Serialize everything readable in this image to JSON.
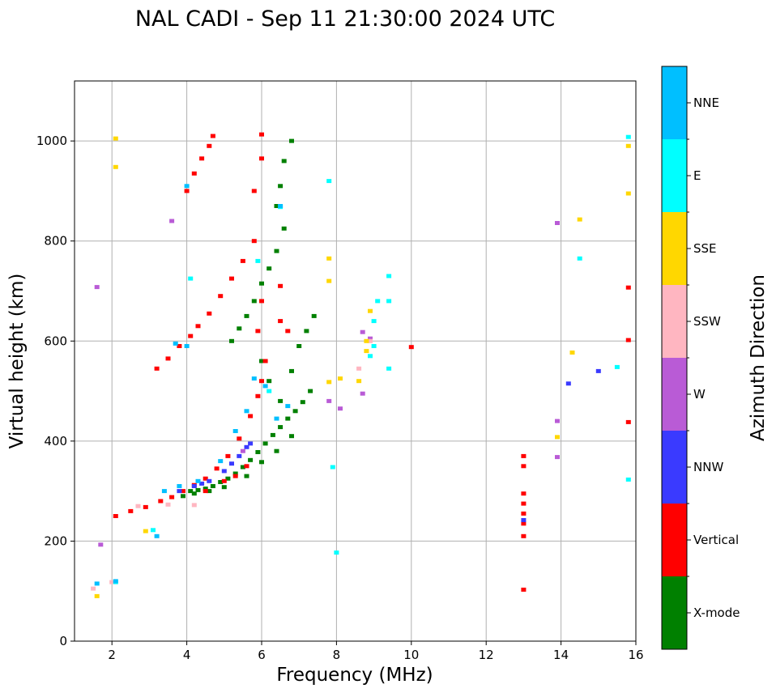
{
  "chart_data": {
    "type": "scatter",
    "title": "NAL CADI - Sep 11 21:30:00 2024 UTC",
    "xlabel": "Frequency (MHz)",
    "ylabel": "Virtual height (km)",
    "xlim": [
      1,
      16
    ],
    "ylim": [
      0,
      1120
    ],
    "xticks": [
      2,
      4,
      6,
      8,
      10,
      12,
      14,
      16
    ],
    "yticks": [
      0,
      200,
      400,
      600,
      800,
      1000
    ],
    "grid": true,
    "colorbar": {
      "label": "Azimuth Direction",
      "categories": [
        {
          "name": "X-mode",
          "color": "#008000"
        },
        {
          "name": "Vertical",
          "color": "#ff0000"
        },
        {
          "name": "NNW",
          "color": "#3a3aff"
        },
        {
          "name": "W",
          "color": "#b95bd6"
        },
        {
          "name": "SSW",
          "color": "#ffb6c1"
        },
        {
          "name": "SSE",
          "color": "#ffd700"
        },
        {
          "name": "E",
          "color": "#00ffff"
        },
        {
          "name": "NNE",
          "color": "#00bfff"
        }
      ]
    },
    "series": [
      {
        "name": "X-mode",
        "points": [
          [
            4.1,
            300
          ],
          [
            4.3,
            302
          ],
          [
            4.5,
            305
          ],
          [
            4.7,
            310
          ],
          [
            4.9,
            318
          ],
          [
            5.1,
            325
          ],
          [
            5.3,
            335
          ],
          [
            5.5,
            348
          ],
          [
            5.7,
            362
          ],
          [
            5.9,
            378
          ],
          [
            6.1,
            395
          ],
          [
            6.3,
            412
          ],
          [
            6.5,
            428
          ],
          [
            6.7,
            445
          ],
          [
            6.9,
            460
          ],
          [
            7.1,
            478
          ],
          [
            7.3,
            500
          ],
          [
            5.2,
            600
          ],
          [
            5.4,
            625
          ],
          [
            5.6,
            650
          ],
          [
            5.8,
            680
          ],
          [
            6.0,
            715
          ],
          [
            6.2,
            745
          ],
          [
            6.4,
            780
          ],
          [
            6.6,
            825
          ],
          [
            6.4,
            870
          ],
          [
            6.5,
            910
          ],
          [
            6.6,
            960
          ],
          [
            6.8,
            1000
          ],
          [
            6.0,
            560
          ],
          [
            6.2,
            520
          ],
          [
            6.5,
            480
          ],
          [
            6.8,
            540
          ],
          [
            7.0,
            590
          ],
          [
            7.2,
            620
          ],
          [
            7.4,
            650
          ],
          [
            3.9,
            290
          ],
          [
            4.2,
            295
          ],
          [
            4.6,
            300
          ],
          [
            5.0,
            308
          ],
          [
            5.6,
            330
          ],
          [
            6.0,
            358
          ],
          [
            6.4,
            380
          ],
          [
            6.8,
            410
          ]
        ]
      },
      {
        "name": "Vertical",
        "points": [
          [
            2.1,
            250
          ],
          [
            2.5,
            260
          ],
          [
            2.9,
            268
          ],
          [
            3.3,
            280
          ],
          [
            3.6,
            288
          ],
          [
            3.9,
            300
          ],
          [
            4.2,
            312
          ],
          [
            4.5,
            325
          ],
          [
            4.8,
            345
          ],
          [
            5.1,
            370
          ],
          [
            5.4,
            405
          ],
          [
            5.7,
            450
          ],
          [
            5.9,
            490
          ],
          [
            6.0,
            520
          ],
          [
            6.1,
            560
          ],
          [
            5.9,
            620
          ],
          [
            6.0,
            680
          ],
          [
            3.2,
            545
          ],
          [
            3.5,
            565
          ],
          [
            3.8,
            590
          ],
          [
            4.1,
            610
          ],
          [
            4.3,
            630
          ],
          [
            4.6,
            655
          ],
          [
            4.9,
            690
          ],
          [
            5.2,
            725
          ],
          [
            5.5,
            760
          ],
          [
            5.8,
            800
          ],
          [
            4.0,
            900
          ],
          [
            4.2,
            935
          ],
          [
            4.4,
            965
          ],
          [
            4.6,
            990
          ],
          [
            4.7,
            1010
          ],
          [
            6.0,
            965
          ],
          [
            6.0,
            1013
          ],
          [
            6.5,
            640
          ],
          [
            6.7,
            620
          ],
          [
            6.5,
            710
          ],
          [
            10.0,
            588
          ],
          [
            13.0,
            235
          ],
          [
            13.0,
            255
          ],
          [
            13.0,
            275
          ],
          [
            13.0,
            295
          ],
          [
            13.0,
            350
          ],
          [
            13.0,
            370
          ],
          [
            13.0,
            210
          ],
          [
            13.0,
            103
          ],
          [
            15.8,
            438
          ],
          [
            15.8,
            602
          ],
          [
            15.8,
            707
          ],
          [
            5.8,
            900
          ],
          [
            4.5,
            300
          ],
          [
            5.0,
            320
          ],
          [
            5.3,
            330
          ],
          [
            5.6,
            350
          ]
        ]
      },
      {
        "name": "NNW",
        "points": [
          [
            3.8,
            300
          ],
          [
            4.2,
            310
          ],
          [
            4.6,
            320
          ],
          [
            5.0,
            340
          ],
          [
            5.4,
            370
          ],
          [
            5.6,
            388
          ],
          [
            5.2,
            355
          ],
          [
            4.4,
            315
          ],
          [
            13.0,
            242
          ],
          [
            15.0,
            540
          ],
          [
            14.2,
            515
          ],
          [
            5.7,
            395
          ]
        ]
      },
      {
        "name": "W",
        "points": [
          [
            1.7,
            193
          ],
          [
            1.6,
            708
          ],
          [
            3.6,
            840
          ],
          [
            8.7,
            495
          ],
          [
            8.7,
            618
          ],
          [
            8.9,
            605
          ],
          [
            7.8,
            480
          ],
          [
            8.1,
            465
          ],
          [
            13.9,
            368
          ],
          [
            13.9,
            440
          ],
          [
            13.9,
            836
          ],
          [
            5.5,
            380
          ]
        ]
      },
      {
        "name": "SSW",
        "points": [
          [
            1.5,
            105
          ],
          [
            2.0,
            118
          ],
          [
            2.7,
            270
          ],
          [
            3.5,
            273
          ],
          [
            8.9,
            600
          ],
          [
            8.6,
            545
          ],
          [
            4.2,
            272
          ]
        ]
      },
      {
        "name": "SSE",
        "points": [
          [
            1.6,
            90
          ],
          [
            2.1,
            1005
          ],
          [
            2.1,
            948
          ],
          [
            2.9,
            220
          ],
          [
            7.8,
            720
          ],
          [
            7.8,
            765
          ],
          [
            7.8,
            518
          ],
          [
            8.1,
            525
          ],
          [
            8.6,
            520
          ],
          [
            8.8,
            580
          ],
          [
            8.8,
            600
          ],
          [
            8.9,
            660
          ],
          [
            14.3,
            577
          ],
          [
            13.9,
            408
          ],
          [
            14.5,
            843
          ],
          [
            15.8,
            990
          ],
          [
            15.8,
            895
          ]
        ]
      },
      {
        "name": "E",
        "points": [
          [
            2.1,
            118
          ],
          [
            3.1,
            222
          ],
          [
            6.5,
            868
          ],
          [
            7.8,
            920
          ],
          [
            7.9,
            348
          ],
          [
            8.0,
            177
          ],
          [
            8.9,
            570
          ],
          [
            9.0,
            590
          ],
          [
            9.0,
            640
          ],
          [
            9.1,
            680
          ],
          [
            9.4,
            680
          ],
          [
            9.4,
            730
          ],
          [
            9.4,
            545
          ],
          [
            14.5,
            765
          ],
          [
            15.5,
            548
          ],
          [
            15.8,
            1008
          ],
          [
            15.8,
            323
          ],
          [
            5.9,
            760
          ],
          [
            6.2,
            500
          ],
          [
            4.1,
            725
          ]
        ]
      },
      {
        "name": "NNE",
        "points": [
          [
            1.6,
            115
          ],
          [
            2.1,
            120
          ],
          [
            3.2,
            210
          ],
          [
            3.4,
            300
          ],
          [
            3.7,
            595
          ],
          [
            4.0,
            590
          ],
          [
            4.0,
            910
          ],
          [
            6.5,
            870
          ],
          [
            6.1,
            510
          ],
          [
            5.8,
            525
          ],
          [
            6.4,
            445
          ],
          [
            6.7,
            470
          ],
          [
            5.6,
            460
          ],
          [
            5.3,
            420
          ],
          [
            4.9,
            360
          ],
          [
            4.3,
            320
          ],
          [
            3.8,
            310
          ]
        ]
      }
    ]
  }
}
